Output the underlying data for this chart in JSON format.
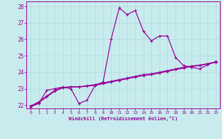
{
  "xlabel": "Windchill (Refroidissement éolien,°C)",
  "bg_color": "#c8ecee",
  "line_color": "#990099",
  "grid_color": "#b0d8dc",
  "xlim": [
    -0.5,
    23.5
  ],
  "ylim": [
    21.8,
    28.3
  ],
  "x": [
    0,
    1,
    2,
    3,
    4,
    5,
    6,
    7,
    8,
    9,
    10,
    11,
    12,
    13,
    14,
    15,
    16,
    17,
    18,
    19,
    20,
    21,
    22,
    23
  ],
  "y_jagged": [
    21.9,
    22.1,
    22.9,
    23.0,
    23.1,
    23.0,
    22.1,
    22.3,
    23.2,
    23.4,
    26.0,
    27.9,
    27.5,
    27.75,
    26.5,
    25.9,
    26.2,
    26.2,
    24.9,
    24.4,
    24.3,
    24.2,
    24.45,
    24.65
  ],
  "y_smooth1": [
    21.9,
    22.15,
    22.5,
    22.85,
    23.05,
    23.1,
    23.1,
    23.15,
    23.2,
    23.3,
    23.4,
    23.5,
    23.6,
    23.7,
    23.8,
    23.85,
    23.95,
    24.05,
    24.15,
    24.25,
    24.35,
    24.4,
    24.5,
    24.6
  ],
  "y_smooth2": [
    21.95,
    22.2,
    22.55,
    22.9,
    23.08,
    23.12,
    23.12,
    23.18,
    23.25,
    23.35,
    23.45,
    23.55,
    23.65,
    23.75,
    23.85,
    23.9,
    24.0,
    24.1,
    24.2,
    24.3,
    24.38,
    24.43,
    24.52,
    24.62
  ],
  "xticks": [
    0,
    1,
    2,
    3,
    4,
    5,
    6,
    7,
    8,
    9,
    10,
    11,
    12,
    13,
    14,
    15,
    16,
    17,
    18,
    19,
    20,
    21,
    22,
    23
  ],
  "yticks": [
    22,
    23,
    24,
    25,
    26,
    27,
    28
  ],
  "marker": "+"
}
